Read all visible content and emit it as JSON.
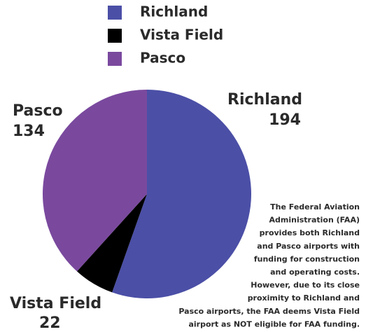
{
  "chart_data": {
    "type": "pie",
    "categories": [
      "Richland",
      "Vista Field",
      "Pasco"
    ],
    "values": [
      194,
      22,
      134
    ],
    "colors": [
      "#4b4fa6",
      "#000000",
      "#7a499e"
    ],
    "annotation": [
      "The Federal Aviation",
      "Administration (FAA)",
      "provides both Richland",
      "and Pasco airports with",
      "funding for construction",
      "and operating costs.",
      "However, due to its close",
      "proximity to Richland and",
      "Pasco airports, the FAA deems Vista Field",
      "airport as NOT eligible for FAA funding."
    ]
  }
}
